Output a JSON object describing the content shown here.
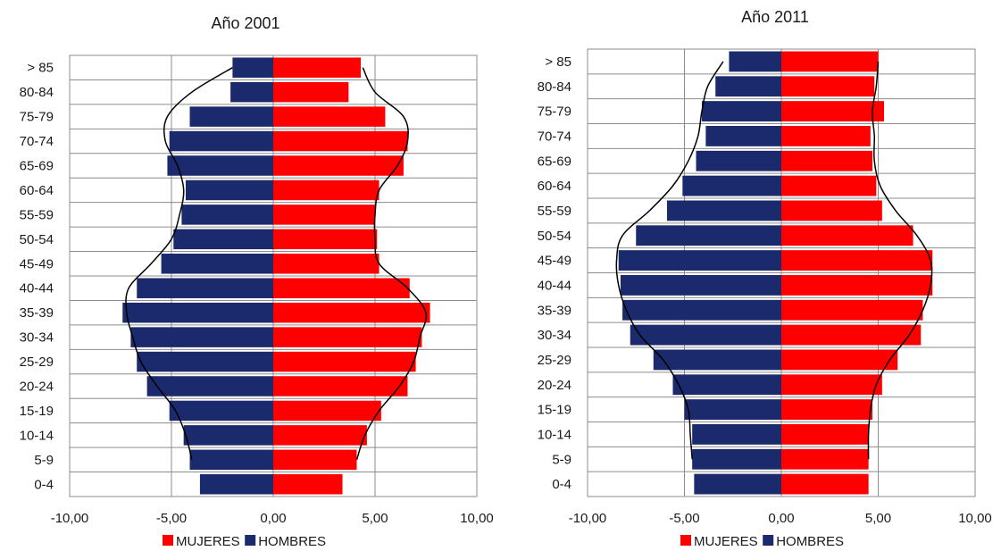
{
  "colors": {
    "mujeres": "#ff0000",
    "hombres": "#1a2a6c"
  },
  "chart_data": [
    {
      "type": "bar",
      "orientation": "horizontal",
      "title": "Año 2001",
      "categories": [
        "0-4",
        "5-9",
        "10-14",
        "15-19",
        "20-24",
        "25-29",
        "30-34",
        "35-39",
        "40-44",
        "45-49",
        "50-54",
        "55-59",
        "60-64",
        "65-69",
        "70-74",
        "75-79",
        "80-84",
        "> 85"
      ],
      "xlim": [
        -10,
        10
      ],
      "xticks": [
        "-10,00",
        "-5,00",
        "0,00",
        "5,00",
        "10,00"
      ],
      "xtick_values": [
        -10,
        -5,
        0,
        5,
        10
      ],
      "grid": true,
      "legend_position": "bottom",
      "series": [
        {
          "name": "MUJERES",
          "values": [
            3.4,
            4.1,
            4.6,
            5.3,
            6.6,
            7.0,
            7.3,
            7.7,
            6.7,
            5.2,
            5.1,
            5.0,
            5.2,
            6.4,
            6.6,
            5.5,
            3.7,
            4.3
          ]
        },
        {
          "name": "HOMBRES",
          "values": [
            -3.6,
            -4.1,
            -4.4,
            -5.1,
            -6.2,
            -6.7,
            -7.0,
            -7.4,
            -6.7,
            -5.5,
            -4.9,
            -4.5,
            -4.3,
            -5.2,
            -5.1,
            -4.1,
            -2.1,
            -2.0
          ]
        }
      ]
    },
    {
      "type": "bar",
      "orientation": "horizontal",
      "title": "Año 2011",
      "categories": [
        "0-4",
        "5-9",
        "10-14",
        "15-19",
        "20-24",
        "25-29",
        "30-34",
        "35-39",
        "40-44",
        "45-49",
        "50-54",
        "55-59",
        "60-64",
        "65-69",
        "70-74",
        "75-79",
        "80-84",
        "> 85"
      ],
      "xlim": [
        -10,
        10
      ],
      "xticks": [
        "-10,00",
        "-5,00",
        "0,00",
        "5,00",
        "10,00"
      ],
      "xtick_values": [
        -10,
        -5,
        0,
        5,
        10
      ],
      "grid": true,
      "legend_position": "bottom",
      "series": [
        {
          "name": "MUJERES",
          "values": [
            4.5,
            4.5,
            4.5,
            4.7,
            5.2,
            6.0,
            7.2,
            7.3,
            7.8,
            7.8,
            6.8,
            5.2,
            4.9,
            4.7,
            4.6,
            5.3,
            4.8,
            5.0
          ]
        },
        {
          "name": "HOMBRES",
          "values": [
            -4.5,
            -4.6,
            -4.6,
            -5.0,
            -5.6,
            -6.6,
            -7.8,
            -8.2,
            -8.3,
            -8.4,
            -7.5,
            -5.9,
            -5.1,
            -4.4,
            -3.9,
            -4.1,
            -3.4,
            -2.7
          ]
        }
      ]
    }
  ],
  "trend_lines": [
    {
      "mujeres": [
        4.1,
        4.5,
        5.2,
        6.2,
        6.9,
        7.2,
        7.5,
        6.6,
        5.2,
        5.0,
        5.0,
        5.2,
        6.1,
        6.6,
        6.4,
        5.0,
        4.4
      ],
      "hombres": [
        -4.0,
        -4.3,
        -4.8,
        -5.7,
        -6.5,
        -6.9,
        -7.2,
        -7.1,
        -6.0,
        -5.0,
        -4.6,
        -4.4,
        -4.7,
        -5.3,
        -5.2,
        -4.0,
        -2.0
      ]
    },
    {
      "mujeres": [
        4.5,
        4.5,
        4.6,
        4.9,
        5.6,
        6.6,
        7.3,
        7.7,
        7.7,
        7.0,
        5.9,
        5.1,
        4.8,
        4.8,
        4.7,
        4.9,
        5.0
      ],
      "hombres": [
        -4.6,
        -4.7,
        -4.8,
        -5.3,
        -6.1,
        -7.3,
        -8.0,
        -8.4,
        -8.5,
        -8.2,
        -6.8,
        -5.6,
        -4.8,
        -4.3,
        -4.1,
        -3.8,
        -3.0
      ]
    }
  ]
}
